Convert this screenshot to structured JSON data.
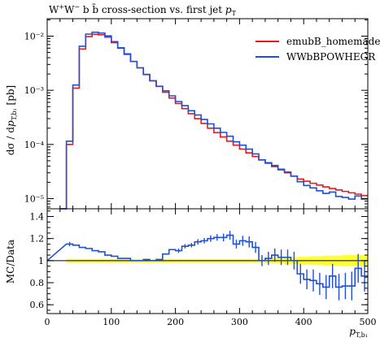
{
  "chart_data": [
    {
      "type": "line",
      "panel": "main",
      "title": "W⁺W⁻ b b̄ cross-section vs. first jet p_T",
      "title_parts": {
        "pre": "W",
        "sup1": "+",
        "mid": "W",
        "sup2": "−",
        "post": " b b̄ cross-section vs. first jet ",
        "var": "p",
        "sub": "T"
      },
      "ylabel": "dσ / dp_T,b1 [pb]",
      "ylabel_parts": {
        "pre": "dσ / d",
        "var": "p",
        "sub": "T,b₁",
        "unit": " [pb]"
      },
      "xlim": [
        0,
        500
      ],
      "ylim": [
        6.5e-06,
        0.021
      ],
      "yscale": "log",
      "ytick_labels": [
        "10⁻⁵",
        "10⁻⁴",
        "10⁻³",
        "10⁻²"
      ],
      "ytick_values": [
        1e-05,
        0.0001,
        0.001,
        0.01
      ],
      "legend_position": "top-right",
      "bin_width": 10,
      "series": [
        {
          "name": "emubB_homemade",
          "color": "#e41a1c",
          "x": [
            20,
            30,
            40,
            50,
            60,
            70,
            80,
            90,
            100,
            110,
            120,
            130,
            140,
            150,
            160,
            170,
            180,
            190,
            200,
            210,
            220,
            230,
            240,
            250,
            260,
            270,
            280,
            290,
            300,
            310,
            320,
            330,
            340,
            350,
            360,
            370,
            380,
            390,
            400,
            410,
            420,
            430,
            440,
            450,
            460,
            470,
            480,
            490
          ],
          "values": [
            6.5e-06,
            0.0001,
            0.0011,
            0.0058,
            0.0098,
            0.0108,
            0.0106,
            0.0096,
            0.0076,
            0.006,
            0.0046,
            0.0034,
            0.0026,
            0.00195,
            0.0015,
            0.00118,
            0.00092,
            0.00072,
            0.00057,
            0.00046,
            0.00037,
            0.0003,
            0.000245,
            0.0002,
            0.000165,
            0.000138,
            0.000115,
            9.7e-05,
            8.2e-05,
            7e-05,
            6e-05,
            5.2e-05,
            4.5e-05,
            3.9e-05,
            3.4e-05,
            3e-05,
            2.6e-05,
            2.3e-05,
            2.1e-05,
            1.92e-05,
            1.78e-05,
            1.65e-05,
            1.54e-05,
            1.45e-05,
            1.36e-05,
            1.28e-05,
            1.21e-05,
            1.14e-05
          ]
        },
        {
          "name": "WWbBPOWHEGR",
          "color": "#1e4fd8",
          "x": [
            20,
            30,
            40,
            50,
            60,
            70,
            80,
            90,
            100,
            110,
            120,
            130,
            140,
            150,
            160,
            170,
            180,
            190,
            200,
            210,
            220,
            230,
            240,
            250,
            260,
            270,
            280,
            290,
            300,
            310,
            320,
            330,
            340,
            350,
            360,
            370,
            380,
            390,
            400,
            410,
            420,
            430,
            440,
            450,
            460,
            470,
            480,
            490
          ],
          "values": [
            6.5e-06,
            0.000115,
            0.00125,
            0.0065,
            0.0109,
            0.0118,
            0.0114,
            0.0101,
            0.0079,
            0.0061,
            0.0047,
            0.0034,
            0.0026,
            0.00197,
            0.0015,
            0.00119,
            0.00098,
            0.00079,
            0.00062,
            0.00052,
            0.00042,
            0.00035,
            0.00029,
            0.00024,
            0.0002,
            0.000167,
            0.000142,
            0.000112,
            9.7e-05,
            8.2e-05,
            6.7e-05,
            5.2e-05,
            4.6e-05,
            4.1e-05,
            3.5e-05,
            3.1e-05,
            2.6e-05,
            2.05e-05,
            1.75e-05,
            1.58e-05,
            1.4e-05,
            1.25e-05,
            1.32e-05,
            1.1e-05,
            1.05e-05,
            9.8e-06,
            1.12e-05,
            9.8e-06
          ]
        }
      ]
    },
    {
      "type": "line",
      "panel": "ratio",
      "ylabel": "MC/Data",
      "xlabel": "p_T,b1",
      "xlabel_parts": {
        "var": "p",
        "sub": "T,b₁"
      },
      "xlim": [
        0,
        500
      ],
      "ylim": [
        0.52,
        1.47
      ],
      "ytick_labels": [
        "0.6",
        "0.8",
        "1",
        "1.2",
        "1.4"
      ],
      "ytick_values": [
        0.6,
        0.8,
        1.0,
        1.2,
        1.4
      ],
      "xtick_labels": [
        "0",
        "100",
        "200",
        "300",
        "400",
        "500"
      ],
      "xtick_values": [
        0,
        100,
        200,
        300,
        400,
        500
      ],
      "reference_line": 1.0,
      "band": {
        "color": "#ffff33",
        "x": [
          30,
          330,
          340,
          350,
          360,
          370,
          380,
          390,
          400,
          410,
          420,
          430,
          440,
          450,
          460,
          470,
          480,
          490,
          500
        ],
        "half_width": [
          0.015,
          0.015,
          0.02,
          0.025,
          0.025,
          0.03,
          0.03,
          0.035,
          0.035,
          0.04,
          0.04,
          0.045,
          0.045,
          0.045,
          0.05,
          0.05,
          0.05,
          0.05,
          0.05
        ]
      },
      "series": [
        {
          "name": "WWbBPOWHEGR",
          "color": "#1e4fd8",
          "x": [
            30,
            40,
            50,
            60,
            70,
            80,
            90,
            100,
            110,
            120,
            130,
            140,
            150,
            160,
            170,
            180,
            190,
            200,
            210,
            220,
            230,
            240,
            250,
            260,
            270,
            280,
            290,
            300,
            310,
            320,
            330,
            340,
            350,
            360,
            370,
            380,
            390,
            400,
            410,
            420,
            430,
            440,
            450,
            460,
            470,
            480,
            490
          ],
          "values": [
            1.15,
            1.14,
            1.12,
            1.11,
            1.09,
            1.08,
            1.05,
            1.04,
            1.02,
            1.02,
            1.0,
            1.0,
            1.01,
            1.0,
            1.01,
            1.06,
            1.1,
            1.09,
            1.13,
            1.14,
            1.17,
            1.18,
            1.2,
            1.21,
            1.21,
            1.23,
            1.15,
            1.18,
            1.17,
            1.12,
            1.0,
            1.02,
            1.05,
            1.03,
            1.03,
            1.0,
            0.88,
            0.83,
            0.82,
            0.79,
            0.76,
            0.86,
            0.76,
            0.77,
            0.77,
            0.93,
            0.86
          ],
          "errors": [
            0.02,
            0.01,
            0.01,
            0.01,
            0.01,
            0.01,
            0.01,
            0.01,
            0.01,
            0.01,
            0.01,
            0.01,
            0.01,
            0.01,
            0.01,
            0.015,
            0.015,
            0.02,
            0.02,
            0.02,
            0.025,
            0.025,
            0.03,
            0.03,
            0.035,
            0.04,
            0.04,
            0.045,
            0.05,
            0.05,
            0.05,
            0.06,
            0.06,
            0.07,
            0.07,
            0.08,
            0.09,
            0.09,
            0.1,
            0.1,
            0.11,
            0.11,
            0.12,
            0.12,
            0.13,
            0.13,
            0.14
          ]
        }
      ]
    }
  ]
}
